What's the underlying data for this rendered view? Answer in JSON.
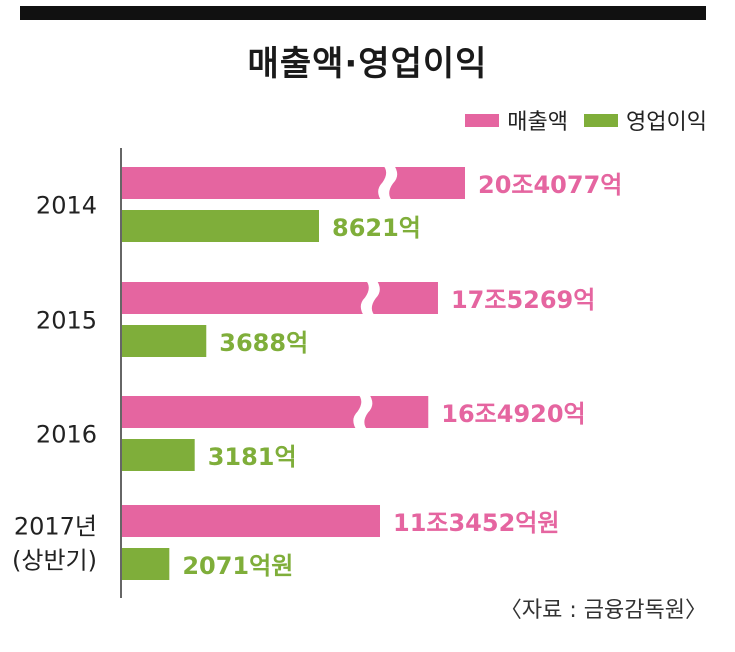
{
  "header": {
    "title": "매출액·영업이익"
  },
  "legend": [
    {
      "label": "매출액",
      "color": "#e565a0"
    },
    {
      "label": "영업이익",
      "color": "#7fae3a"
    }
  ],
  "source": "〈자료 : 금융감독원〉",
  "chart_data": {
    "type": "bar",
    "orientation": "horizontal",
    "axis_break": true,
    "title": "매출액·영업이익",
    "categories": [
      "2014",
      "2015",
      "2016",
      "2017년 (상반기)"
    ],
    "category_lines": [
      [
        "2014"
      ],
      [
        "2015"
      ],
      [
        "2016"
      ],
      [
        "2017년",
        "(상반기)"
      ]
    ],
    "series": [
      {
        "name": "매출액",
        "color": "#e565a0",
        "unit": "억원",
        "values": [
          204077,
          175269,
          164920,
          113452
        ],
        "labels": [
          "20조4077억",
          "17조5269억",
          "16조4920억",
          "11조3452억원"
        ]
      },
      {
        "name": "영업이익",
        "color": "#7fae3a",
        "unit": "억원",
        "values": [
          8621,
          3688,
          3181,
          2071
        ],
        "labels": [
          "8621억",
          "3688억",
          "3181억",
          "2071억원"
        ]
      }
    ]
  }
}
